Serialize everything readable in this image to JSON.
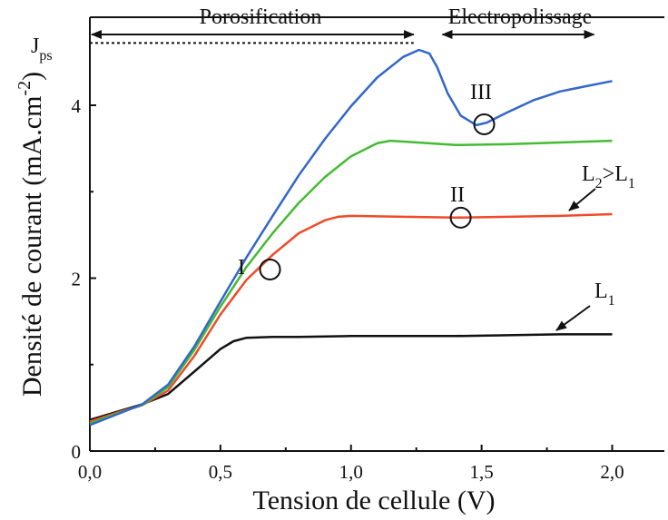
{
  "chart_data": {
    "type": "line",
    "xlabel": "Tension de cellule (V)",
    "ylabel": "Densité de courant (mA.cm",
    "ylabel_exp": "-2",
    "ylabel_close": ")",
    "xlim": [
      0,
      2.2
    ],
    "ylim": [
      0,
      5.0
    ],
    "xticks": [
      0,
      0.5,
      1.0,
      1.5,
      2.0
    ],
    "xtick_labels": [
      "0,0",
      "0,5",
      "1,0",
      "1,5",
      "2,0"
    ],
    "yticks": [
      0,
      2,
      4
    ],
    "ytick_labels": [
      "0",
      "2",
      "4"
    ],
    "grid": false,
    "regions": {
      "porosification": {
        "label": "Porosification",
        "x_start": 0.0,
        "x_end": 1.24
      },
      "electropolissage": {
        "label": "Electropolissage",
        "x_start": 1.35,
        "x_end": 1.93
      }
    },
    "jps": {
      "main": "J",
      "sub": "ps",
      "y": 4.72
    },
    "annotations": {
      "I": {
        "label": "I",
        "x": 0.69,
        "y": 2.1
      },
      "II": {
        "label": "II",
        "x": 1.42,
        "y": 2.7
      },
      "III": {
        "label": "III",
        "x": 1.51,
        "y": 3.78
      },
      "L1": {
        "main": "L",
        "sub": "1"
      },
      "L2": {
        "main": "L",
        "sub": "2",
        "rest": ">L",
        "rest_sub": "1"
      }
    },
    "series": [
      {
        "color": "#111111",
        "x": [
          0,
          0.1,
          0.2,
          0.3,
          0.4,
          0.5,
          0.55,
          0.6,
          0.7,
          0.8,
          1.0,
          1.2,
          1.4,
          1.6,
          1.8,
          2.0
        ],
        "y": [
          0.36,
          0.45,
          0.54,
          0.66,
          0.92,
          1.18,
          1.27,
          1.31,
          1.32,
          1.32,
          1.33,
          1.33,
          1.33,
          1.34,
          1.35,
          1.35
        ]
      },
      {
        "color": "#f04a2a",
        "x": [
          0,
          0.1,
          0.2,
          0.3,
          0.4,
          0.5,
          0.6,
          0.7,
          0.8,
          0.9,
          0.95,
          1.0,
          1.2,
          1.4,
          1.6,
          1.8,
          2.0
        ],
        "y": [
          0.34,
          0.44,
          0.53,
          0.7,
          1.1,
          1.58,
          1.98,
          2.27,
          2.52,
          2.67,
          2.71,
          2.72,
          2.71,
          2.7,
          2.71,
          2.72,
          2.74
        ]
      },
      {
        "color": "#44bb33",
        "x": [
          0,
          0.1,
          0.2,
          0.3,
          0.4,
          0.5,
          0.6,
          0.7,
          0.8,
          0.9,
          1.0,
          1.1,
          1.15,
          1.2,
          1.4,
          1.6,
          1.8,
          2.0
        ],
        "y": [
          0.32,
          0.43,
          0.53,
          0.74,
          1.17,
          1.67,
          2.13,
          2.52,
          2.87,
          3.17,
          3.41,
          3.56,
          3.59,
          3.58,
          3.54,
          3.55,
          3.57,
          3.59
        ]
      },
      {
        "color": "#3366cc",
        "x": [
          0,
          0.1,
          0.2,
          0.3,
          0.4,
          0.5,
          0.6,
          0.7,
          0.8,
          0.9,
          1.0,
          1.1,
          1.2,
          1.26,
          1.3,
          1.33,
          1.37,
          1.42,
          1.48,
          1.52,
          1.6,
          1.7,
          1.8,
          1.9,
          2.0
        ],
        "y": [
          0.3,
          0.42,
          0.54,
          0.77,
          1.21,
          1.73,
          2.24,
          2.72,
          3.19,
          3.61,
          3.99,
          4.32,
          4.56,
          4.64,
          4.6,
          4.44,
          4.14,
          3.88,
          3.77,
          3.8,
          3.92,
          4.06,
          4.16,
          4.22,
          4.28
        ]
      }
    ]
  }
}
